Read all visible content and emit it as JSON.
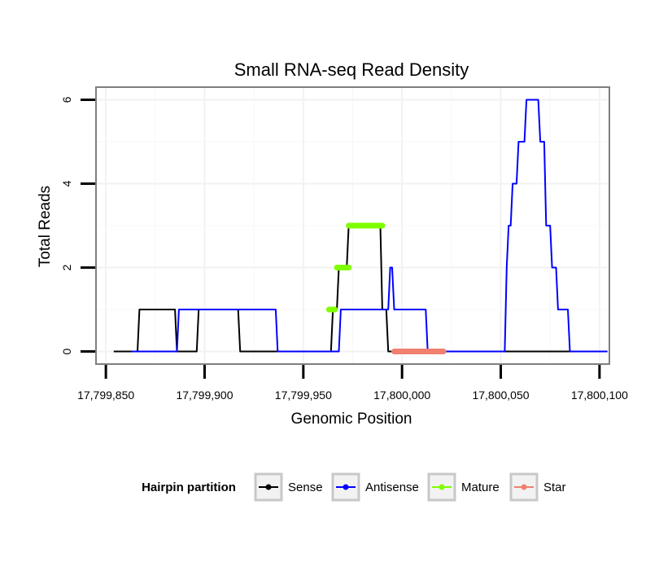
{
  "chart_data": {
    "type": "line",
    "title": "Small RNA-seq Read Density",
    "xlabel": "Genomic Position",
    "ylabel": "Total Reads",
    "xlim": [
      17799845,
      17800105
    ],
    "ylim": [
      -0.3,
      6.3
    ],
    "x_ticks": [
      17799850,
      17799900,
      17799950,
      17800000,
      17800050,
      17800100
    ],
    "x_tick_labels": [
      "17,799,850",
      "17,799,900",
      "17,799,950",
      "17,800,000",
      "17,800,050",
      "17,800,100"
    ],
    "y_ticks": [
      0,
      2,
      4,
      6
    ],
    "y_tick_labels": [
      "0",
      "2",
      "4",
      "6"
    ],
    "grid": true,
    "legend": {
      "title": "Hairpin partition",
      "placement": "bottom",
      "entries": [
        {
          "name": "Sense",
          "color": "#000000"
        },
        {
          "name": "Antisense",
          "color": "#0000ff"
        },
        {
          "name": "Mature",
          "color": "#7fff00"
        },
        {
          "name": "Star",
          "color": "#f08070"
        }
      ]
    },
    "series": [
      {
        "name": "Sense",
        "color": "#000000",
        "width": 2,
        "points": [
          [
            17799854,
            0
          ],
          [
            17799866,
            0
          ],
          [
            17799867,
            1
          ],
          [
            17799885,
            1
          ],
          [
            17799886,
            0
          ],
          [
            17799896,
            0
          ],
          [
            17799897,
            1
          ],
          [
            17799917,
            1
          ],
          [
            17799918,
            0
          ],
          [
            17799964,
            0
          ],
          [
            17799965,
            1
          ],
          [
            17799967,
            1
          ],
          [
            17799968,
            2
          ],
          [
            17799972,
            2
          ],
          [
            17799973,
            3
          ],
          [
            17799989,
            3
          ],
          [
            17799990,
            1
          ],
          [
            17799992,
            1
          ],
          [
            17799993,
            0
          ],
          [
            17800104,
            0
          ]
        ]
      },
      {
        "name": "Antisense",
        "color": "#0000ff",
        "width": 2,
        "points": [
          [
            17799863,
            0
          ],
          [
            17799886,
            0
          ],
          [
            17799887,
            1
          ],
          [
            17799936,
            1
          ],
          [
            17799937,
            0
          ],
          [
            17799968,
            0
          ],
          [
            17799969,
            1
          ],
          [
            17799993,
            1
          ],
          [
            17799994,
            2
          ],
          [
            17799995,
            2
          ],
          [
            17799996,
            1
          ],
          [
            17800012,
            1
          ],
          [
            17800013,
            0
          ],
          [
            17800052,
            0
          ],
          [
            17800053,
            2
          ],
          [
            17800054,
            3
          ],
          [
            17800055,
            3
          ],
          [
            17800056,
            4
          ],
          [
            17800058,
            4
          ],
          [
            17800059,
            5
          ],
          [
            17800062,
            5
          ],
          [
            17800063,
            6
          ],
          [
            17800069,
            6
          ],
          [
            17800070,
            5
          ],
          [
            17800072,
            5
          ],
          [
            17800073,
            3
          ],
          [
            17800075,
            3
          ],
          [
            17800076,
            2
          ],
          [
            17800078,
            2
          ],
          [
            17800079,
            1
          ],
          [
            17800084,
            1
          ],
          [
            17800085,
            0
          ],
          [
            17800104,
            0
          ]
        ]
      },
      {
        "name": "Mature",
        "color": "#7fff00",
        "width": 7,
        "segments": [
          [
            [
              17799963,
              1
            ],
            [
              17799966,
              1
            ]
          ],
          [
            [
              17799967,
              2
            ],
            [
              17799973,
              2
            ]
          ],
          [
            [
              17799973,
              3
            ],
            [
              17799990,
              3
            ]
          ]
        ]
      },
      {
        "name": "Star",
        "color": "#f08070",
        "width": 7,
        "segments": [
          [
            [
              17799996,
              0
            ],
            [
              17800021,
              0
            ]
          ]
        ]
      }
    ]
  }
}
